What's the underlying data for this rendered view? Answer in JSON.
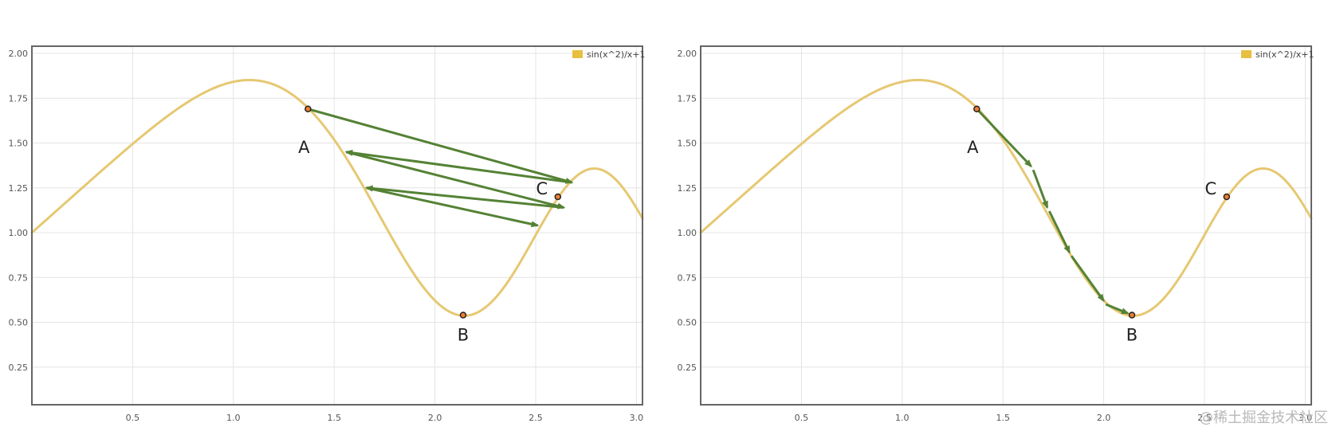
{
  "chart_data": [
    {
      "type": "line",
      "function": "sin(x^2)/x+1",
      "xlim": [
        0,
        3.03
      ],
      "ylim": [
        0.04,
        2.04
      ],
      "x_ticks": [
        "0.5",
        "1.0",
        "1.5",
        "2.0",
        "2.5",
        "3.0"
      ],
      "x_tick_values": [
        0.5,
        1.0,
        1.5,
        2.0,
        2.5,
        3.0
      ],
      "y_ticks": [
        "0.25",
        "0.50",
        "0.75",
        "1.00",
        "1.25",
        "1.50",
        "1.75",
        "2.00"
      ],
      "y_tick_values": [
        0.25,
        0.5,
        0.75,
        1.0,
        1.25,
        1.5,
        1.75,
        2.0
      ],
      "grid": true,
      "legend": {
        "position": "top-right",
        "entries": [
          "sin(x^2)/x+1"
        ]
      },
      "series": [
        {
          "name": "sin(x^2)/x+1",
          "color": "#e6c872"
        }
      ],
      "points": [
        {
          "label": "A",
          "x": 1.37,
          "y": 1.69
        },
        {
          "label": "B",
          "x": 2.14,
          "y": 0.54
        },
        {
          "label": "C",
          "x": 2.61,
          "y": 1.2
        }
      ],
      "arrows": [
        {
          "from": [
            1.37,
            1.69
          ],
          "to": [
            2.68,
            1.28
          ]
        },
        {
          "from": [
            2.68,
            1.28
          ],
          "to": [
            1.56,
            1.45
          ]
        },
        {
          "from": [
            1.56,
            1.45
          ],
          "to": [
            2.64,
            1.14
          ]
        },
        {
          "from": [
            2.64,
            1.14
          ],
          "to": [
            1.66,
            1.25
          ]
        },
        {
          "from": [
            1.66,
            1.25
          ],
          "to": [
            2.51,
            1.04
          ]
        }
      ]
    },
    {
      "type": "line",
      "function": "sin(x^2)/x+1",
      "xlim": [
        0,
        3.03
      ],
      "ylim": [
        0.04,
        2.04
      ],
      "x_ticks": [
        "0.5",
        "1.0",
        "1.5",
        "2.0",
        "2.5",
        "3.0"
      ],
      "x_tick_values": [
        0.5,
        1.0,
        1.5,
        2.0,
        2.5,
        3.0
      ],
      "y_ticks": [
        "0.25",
        "0.50",
        "0.75",
        "1.00",
        "1.25",
        "1.50",
        "1.75",
        "2.00"
      ],
      "y_tick_values": [
        0.25,
        0.5,
        0.75,
        1.0,
        1.25,
        1.5,
        1.75,
        2.0
      ],
      "grid": true,
      "legend": {
        "position": "top-right",
        "entries": [
          "sin(x^2)/x+1"
        ]
      },
      "series": [
        {
          "name": "sin(x^2)/x+1",
          "color": "#e6c872"
        }
      ],
      "points": [
        {
          "label": "A",
          "x": 1.37,
          "y": 1.69
        },
        {
          "label": "B",
          "x": 2.14,
          "y": 0.54
        },
        {
          "label": "C",
          "x": 2.61,
          "y": 1.2
        }
      ],
      "arrows": [
        {
          "from": [
            1.37,
            1.69
          ],
          "to": [
            1.64,
            1.37
          ]
        },
        {
          "from": [
            1.65,
            1.35
          ],
          "to": [
            1.72,
            1.14
          ]
        },
        {
          "from": [
            1.73,
            1.12
          ],
          "to": [
            1.83,
            0.89
          ]
        },
        {
          "from": [
            1.84,
            0.87
          ],
          "to": [
            2.0,
            0.62
          ]
        },
        {
          "from": [
            2.01,
            0.6
          ],
          "to": [
            2.12,
            0.55
          ]
        }
      ]
    }
  ],
  "colors": {
    "curve": "#e6c872",
    "arrow": "#548235",
    "point_fill": "#ed7d31",
    "point_stroke": "#222222",
    "grid": "#e4e4e4",
    "frame": "#666666",
    "legend_swatch": "#e8c040"
  },
  "watermark": "@稀土掘金技术社区"
}
